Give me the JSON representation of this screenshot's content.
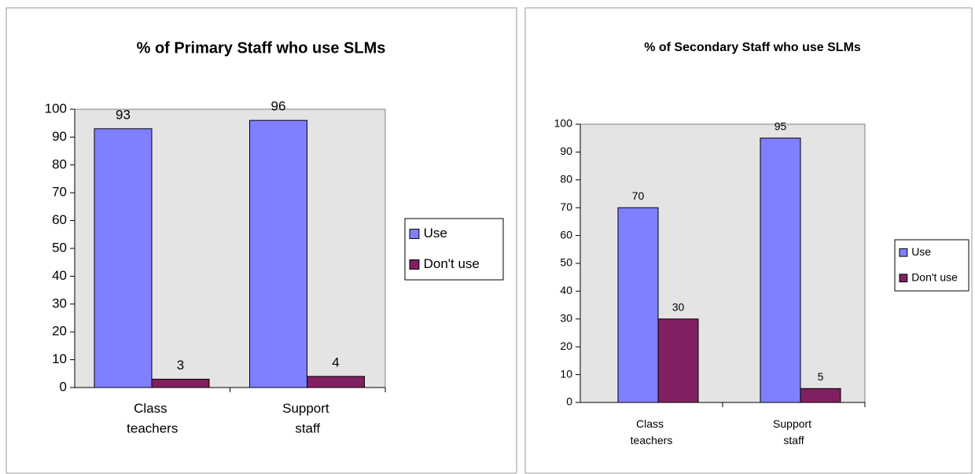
{
  "chart_data": [
    {
      "type": "bar",
      "title": "% of Primary Staff who use SLMs",
      "categories": [
        "Class teachers",
        "Support staff"
      ],
      "series": [
        {
          "name": "Use",
          "color": "#8080ff",
          "values": [
            93,
            96
          ]
        },
        {
          "name": "Don't use",
          "color": "#802060",
          "values": [
            3,
            4
          ]
        }
      ],
      "ylim": [
        0,
        100
      ],
      "yticks": [
        0,
        10,
        20,
        30,
        40,
        50,
        60,
        70,
        80,
        90,
        100
      ],
      "grid": false,
      "legend": "right"
    },
    {
      "type": "bar",
      "title": "% of Secondary Staff who use SLMs",
      "categories": [
        "Class teachers",
        "Support staff"
      ],
      "series": [
        {
          "name": "Use",
          "color": "#8080ff",
          "values": [
            70,
            95
          ]
        },
        {
          "name": "Don't use",
          "color": "#802060",
          "values": [
            30,
            5
          ]
        }
      ],
      "ylim": [
        0,
        100
      ],
      "yticks": [
        0,
        10,
        20,
        30,
        40,
        50,
        60,
        70,
        80,
        90,
        100
      ],
      "grid": false,
      "legend": "right"
    }
  ]
}
